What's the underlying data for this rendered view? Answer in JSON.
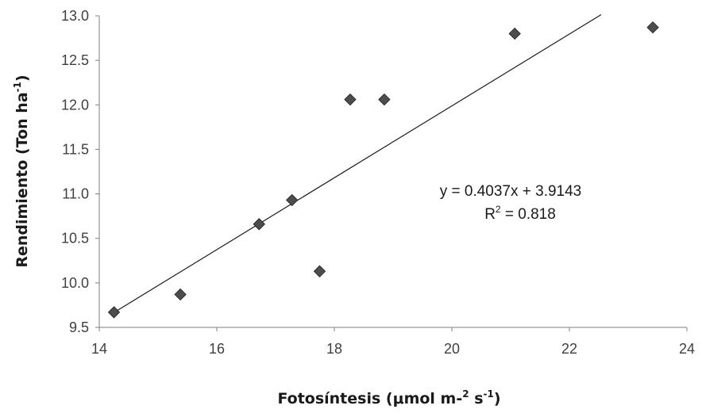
{
  "chart_data": {
    "type": "scatter",
    "title": "",
    "xlabel": {
      "main": "Fotosíntesis (μmol m-",
      "sup1": "2",
      "mid": " s",
      "sup2": "-1",
      "end": ")"
    },
    "ylabel": {
      "main": "Rendimiento (Ton ha",
      "sup": "-1",
      "end": ")"
    },
    "xlim": [
      14,
      24
    ],
    "ylim": [
      9.5,
      13.0
    ],
    "x_ticks": [
      14,
      16,
      18,
      20,
      22,
      24
    ],
    "x_tick_labels": [
      "14",
      "16",
      "18",
      "20",
      "22",
      "24"
    ],
    "y_ticks": [
      9.5,
      10.0,
      10.5,
      11.0,
      11.5,
      12.0,
      12.5,
      13.0
    ],
    "y_tick_labels": [
      "9.5",
      "10.0",
      "10.5",
      "11.0",
      "11.5",
      "12.0",
      "12.5",
      "13.0"
    ],
    "grid": false,
    "marker": "diamond",
    "marker_color": "#4d4d4d",
    "points": [
      {
        "x": 14.25,
        "y": 9.67
      },
      {
        "x": 15.38,
        "y": 9.87
      },
      {
        "x": 16.72,
        "y": 10.66
      },
      {
        "x": 17.28,
        "y": 10.93
      },
      {
        "x": 17.75,
        "y": 10.13
      },
      {
        "x": 18.27,
        "y": 12.06
      },
      {
        "x": 18.85,
        "y": 12.06
      },
      {
        "x": 21.07,
        "y": 12.8
      },
      {
        "x": 23.42,
        "y": 12.87
      }
    ],
    "trendline": {
      "slope": 0.4037,
      "intercept": 3.9143,
      "x_range": [
        14.25,
        22.54
      ],
      "color": "#1a1a1a"
    },
    "equation_text": "y = 0.4037x + 3.9143",
    "r2": {
      "prefix": "R",
      "sup": "2",
      "rest": " = 0.818"
    }
  }
}
